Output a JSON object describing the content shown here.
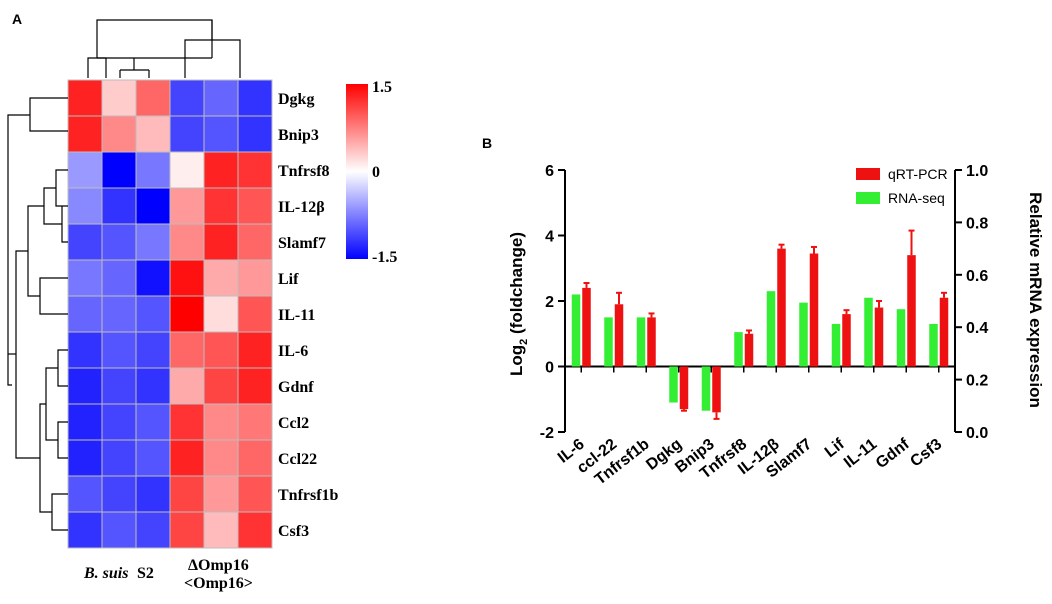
{
  "panel_a_label": "A",
  "panel_b_label": "B",
  "chart_data": [
    {
      "type": "heatmap",
      "title": "",
      "rows": [
        "Dgkg",
        "Bnip3",
        "Tnfrsf8",
        "IL-12β",
        "Slamf7",
        "Lif",
        "IL-11",
        "IL-6",
        "Gdnf",
        "Ccl2",
        "Ccl22",
        "Tnfrsf1b",
        "Csf3"
      ],
      "group_labels": {
        "left_italic": "B. suis",
        "left_plain": "S2",
        "right_line1": "ΔOmp16",
        "right_line2": "<Omp16>"
      },
      "values": [
        [
          1.3,
          0.3,
          0.9,
          -1.1,
          -0.9,
          -1.2
        ],
        [
          1.3,
          0.7,
          0.4,
          -1.1,
          -1.0,
          -1.2
        ],
        [
          -0.6,
          -1.5,
          -0.8,
          0.1,
          1.3,
          1.2
        ],
        [
          -0.7,
          -1.2,
          -1.5,
          0.6,
          1.2,
          1.0
        ],
        [
          -1.1,
          -1.0,
          -0.8,
          0.7,
          1.3,
          0.9
        ],
        [
          -0.8,
          -0.9,
          -1.4,
          1.4,
          0.5,
          0.6
        ],
        [
          -0.9,
          -0.9,
          -1.0,
          1.5,
          0.2,
          1.0
        ],
        [
          -1.2,
          -1.0,
          -1.1,
          0.9,
          1.0,
          1.3
        ],
        [
          -1.3,
          -1.1,
          -1.2,
          0.5,
          1.1,
          1.3
        ],
        [
          -1.3,
          -1.1,
          -1.0,
          1.2,
          0.7,
          0.8
        ],
        [
          -1.3,
          -1.1,
          -1.0,
          1.3,
          0.7,
          0.9
        ],
        [
          -1.0,
          -1.1,
          -1.2,
          1.1,
          0.6,
          1.0
        ],
        [
          -1.2,
          -1.0,
          -1.1,
          1.1,
          0.4,
          1.2
        ]
      ],
      "colorbar": {
        "min": -1.5,
        "max": 1.5,
        "tick_labels": [
          "1.5",
          "0",
          "-1.5"
        ],
        "low_color": "#0000ff",
        "mid_color": "#ffffff",
        "high_color": "#ff0000"
      }
    },
    {
      "type": "bar",
      "title": "",
      "categories": [
        "IL-6",
        "ccl-22",
        "Tnfrsf1b",
        "Dgkg",
        "Bnip3",
        "Tnfrsf8",
        "IL-12β",
        "Slamf7",
        "Lif",
        "IL-11",
        "Gdnf",
        "Csf3"
      ],
      "series": [
        {
          "name": "RNA-seq",
          "color": "#33ee33",
          "values": [
            2.2,
            1.5,
            1.5,
            -1.1,
            -1.35,
            1.05,
            2.3,
            1.95,
            1.3,
            2.1,
            1.75,
            1.3
          ],
          "errors": [
            0,
            0,
            0,
            0,
            0,
            0,
            0,
            0,
            0,
            0,
            0,
            0
          ]
        },
        {
          "name": "qRT-PCR",
          "color": "#ee1111",
          "values": [
            2.4,
            1.9,
            1.5,
            -1.3,
            -1.4,
            1.0,
            3.6,
            3.45,
            1.6,
            1.8,
            3.4,
            2.1
          ],
          "errors": [
            0.15,
            0.35,
            0.12,
            0.05,
            0.2,
            0.1,
            0.12,
            0.2,
            0.12,
            0.2,
            0.75,
            0.15
          ]
        }
      ],
      "ylabel_main": "Log",
      "ylabel_sub": "2",
      "ylabel_rest": " (foldchange)",
      "y2label": "Relative mRNA expression",
      "ylim": [
        -2,
        6
      ],
      "y_ticks": [
        -2,
        0,
        2,
        4,
        6
      ],
      "y2lim": [
        0.0,
        1.0
      ],
      "y2_ticks": [
        "0.0",
        "0.2",
        "0.4",
        "0.6",
        "0.8",
        "1.0"
      ],
      "legend_position": "top-right"
    }
  ]
}
